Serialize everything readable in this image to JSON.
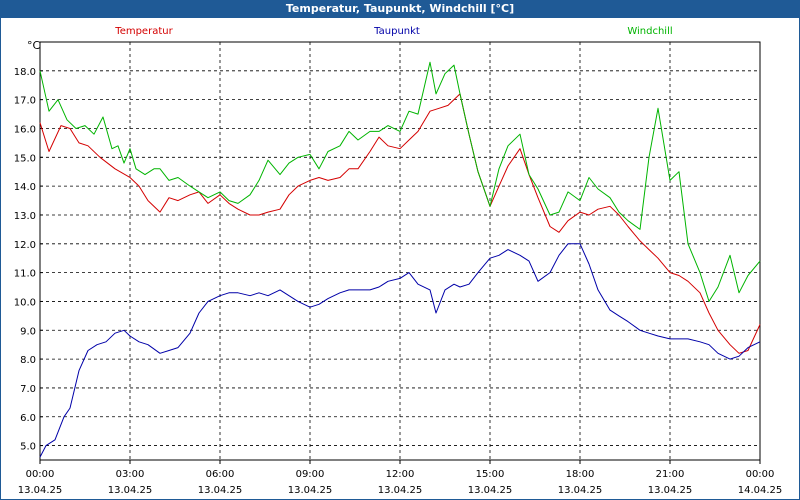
{
  "window": {
    "title": "Temperatur, Taupunkt, Windchill [°C]"
  },
  "chart_data": {
    "type": "line",
    "title": "Temperatur, Taupunkt, Windchill [°C]",
    "ylabel": "°C",
    "ylim": [
      4.5,
      19.0
    ],
    "xlim": [
      0,
      24
    ],
    "grid": true,
    "y_ticks": [
      "5.0",
      "6.0",
      "7.0",
      "8.0",
      "9.0",
      "10.0",
      "11.0",
      "12.0",
      "13.0",
      "14.0",
      "15.0",
      "16.0",
      "17.0",
      "18.0"
    ],
    "x_ticks": [
      {
        "time": "00:00",
        "date": "13.04.25"
      },
      {
        "time": "03:00",
        "date": "13.04.25"
      },
      {
        "time": "06:00",
        "date": "13.04.25"
      },
      {
        "time": "09:00",
        "date": "13.04.25"
      },
      {
        "time": "12:00",
        "date": "13.04.25"
      },
      {
        "time": "15:00",
        "date": "13.04.25"
      },
      {
        "time": "18:00",
        "date": "13.04.25"
      },
      {
        "time": "21:00",
        "date": "13.04.25"
      },
      {
        "time": "00:00",
        "date": "14.04.25"
      }
    ],
    "colors": {
      "Temperatur": "#d40000",
      "Taupunkt": "#0000a8",
      "Windchill": "#00b400"
    },
    "series": [
      {
        "name": "Temperatur",
        "x": [
          0,
          0.3,
          0.7,
          1,
          1.3,
          1.6,
          2,
          2.5,
          3,
          3.3,
          3.6,
          4,
          4.3,
          4.6,
          5,
          5.3,
          5.6,
          6,
          6.3,
          6.6,
          7,
          7.3,
          7.6,
          8,
          8.3,
          8.6,
          9,
          9.3,
          9.6,
          10,
          10.3,
          10.6,
          11,
          11.3,
          11.6,
          12,
          12.3,
          12.6,
          13,
          13.3,
          13.6,
          14,
          14.3,
          14.6,
          15,
          15.3,
          15.6,
          16,
          16.3,
          16.6,
          17,
          17.3,
          17.6,
          18,
          18.3,
          18.6,
          19,
          19.3,
          19.6,
          20,
          20.3,
          20.6,
          21,
          21.3,
          21.6,
          22,
          22.3,
          22.6,
          23,
          23.3,
          23.6,
          24
        ],
        "values": [
          16.2,
          15.2,
          16.1,
          16.0,
          15.5,
          15.4,
          15.0,
          14.6,
          14.3,
          14.0,
          13.5,
          13.1,
          13.6,
          13.5,
          13.7,
          13.8,
          13.4,
          13.7,
          13.4,
          13.2,
          13.0,
          13.0,
          13.1,
          13.2,
          13.7,
          14.0,
          14.2,
          14.3,
          14.2,
          14.3,
          14.6,
          14.6,
          15.2,
          15.7,
          15.4,
          15.3,
          15.6,
          15.9,
          16.6,
          16.7,
          16.8,
          17.2,
          15.8,
          14.5,
          13.3,
          14.0,
          14.7,
          15.3,
          14.4,
          13.6,
          12.6,
          12.4,
          12.8,
          13.1,
          13.0,
          13.2,
          13.3,
          13.0,
          12.6,
          12.1,
          11.8,
          11.5,
          11.0,
          10.9,
          10.7,
          10.3,
          9.6,
          9.0,
          8.5,
          8.2,
          8.3,
          9.2
        ]
      },
      {
        "name": "Taupunkt",
        "x": [
          0,
          0.2,
          0.5,
          0.8,
          1,
          1.3,
          1.6,
          1.9,
          2.2,
          2.5,
          2.8,
          3,
          3.3,
          3.6,
          4,
          4.3,
          4.6,
          5,
          5.3,
          5.6,
          6,
          6.3,
          6.6,
          7,
          7.3,
          7.6,
          8,
          8.3,
          8.6,
          9,
          9.3,
          9.6,
          10,
          10.3,
          10.6,
          11,
          11.3,
          11.6,
          12,
          12.3,
          12.6,
          13,
          13.2,
          13.5,
          13.8,
          14,
          14.3,
          14.6,
          15,
          15.3,
          15.6,
          16,
          16.3,
          16.6,
          17,
          17.3,
          17.6,
          18,
          18.3,
          18.6,
          19,
          19.3,
          19.6,
          20,
          20.3,
          20.6,
          21,
          21.3,
          21.6,
          22,
          22.3,
          22.6,
          23,
          23.3,
          23.6,
          24
        ],
        "values": [
          4.6,
          5.0,
          5.2,
          6.0,
          6.3,
          7.6,
          8.3,
          8.5,
          8.6,
          8.9,
          9.0,
          8.8,
          8.6,
          8.5,
          8.2,
          8.3,
          8.4,
          8.9,
          9.6,
          10.0,
          10.2,
          10.3,
          10.3,
          10.2,
          10.3,
          10.2,
          10.4,
          10.2,
          10.0,
          9.8,
          9.9,
          10.1,
          10.3,
          10.4,
          10.4,
          10.4,
          10.5,
          10.7,
          10.8,
          11.0,
          10.6,
          10.4,
          9.6,
          10.4,
          10.6,
          10.5,
          10.6,
          11.0,
          11.5,
          11.6,
          11.8,
          11.6,
          11.4,
          10.7,
          11.0,
          11.6,
          12.0,
          12.0,
          11.3,
          10.4,
          9.7,
          9.5,
          9.3,
          9.0,
          8.9,
          8.8,
          8.7,
          8.7,
          8.7,
          8.6,
          8.5,
          8.2,
          8.0,
          8.1,
          8.4,
          8.6
        ]
      },
      {
        "name": "Windchill",
        "x": [
          0,
          0.3,
          0.6,
          0.9,
          1.2,
          1.5,
          1.8,
          2.1,
          2.4,
          2.6,
          2.8,
          3,
          3.2,
          3.5,
          3.8,
          4,
          4.3,
          4.6,
          5,
          5.3,
          5.6,
          6,
          6.3,
          6.6,
          7,
          7.3,
          7.6,
          8,
          8.3,
          8.6,
          9,
          9.3,
          9.6,
          10,
          10.3,
          10.6,
          11,
          11.3,
          11.6,
          12,
          12.3,
          12.6,
          13,
          13.2,
          13.5,
          13.8,
          14,
          14.3,
          14.6,
          15,
          15.3,
          15.6,
          16,
          16.3,
          16.6,
          17,
          17.3,
          17.6,
          18,
          18.3,
          18.6,
          19,
          19.3,
          19.6,
          20,
          20.3,
          20.6,
          21,
          21.3,
          21.6,
          22,
          22.3,
          22.6,
          23,
          23.3,
          23.6,
          24
        ],
        "values": [
          18.0,
          16.6,
          17.0,
          16.3,
          16.0,
          16.1,
          15.8,
          16.4,
          15.3,
          15.4,
          14.8,
          15.3,
          14.6,
          14.4,
          14.6,
          14.6,
          14.2,
          14.3,
          14.0,
          13.8,
          13.6,
          13.8,
          13.5,
          13.4,
          13.7,
          14.2,
          14.9,
          14.4,
          14.8,
          15.0,
          15.1,
          14.6,
          15.2,
          15.4,
          15.9,
          15.6,
          15.9,
          15.9,
          16.1,
          15.9,
          16.6,
          16.5,
          18.3,
          17.2,
          17.9,
          18.2,
          17.2,
          15.8,
          14.5,
          13.3,
          14.6,
          15.4,
          15.8,
          14.4,
          13.9,
          13.0,
          13.1,
          13.8,
          13.5,
          14.3,
          13.9,
          13.6,
          13.1,
          12.8,
          12.5,
          15.0,
          16.7,
          14.2,
          14.5,
          12.0,
          11.0,
          10.0,
          10.5,
          11.6,
          10.3,
          10.9,
          11.4
        ]
      }
    ]
  }
}
